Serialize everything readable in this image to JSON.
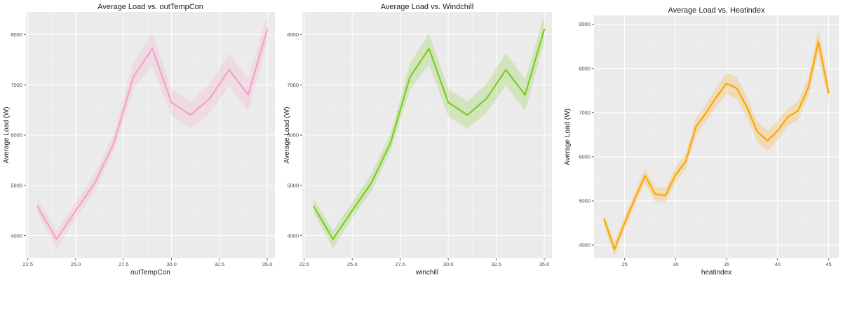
{
  "chart_data": [
    {
      "type": "line",
      "title": "Average Load vs. outTempCon",
      "xlabel": "outTempCon",
      "ylabel": "Average Load (W)",
      "xlim": [
        22.4,
        35.4
      ],
      "ylim": [
        3550,
        8450
      ],
      "xticks": [
        22.5,
        25.0,
        27.5,
        30.0,
        32.5,
        35.0
      ],
      "xtick_labels": [
        "22.5",
        "25.0",
        "27.5",
        "30.0",
        "32.5",
        "35.0"
      ],
      "yticks": [
        4000,
        5000,
        6000,
        7000,
        8000
      ],
      "ytick_labels": [
        "4000",
        "5000",
        "6000",
        "7000",
        "8000"
      ],
      "grid": true,
      "series": [
        {
          "color": "#f7a1c4",
          "x": [
            23,
            24,
            25,
            26,
            27,
            28,
            29,
            30,
            31,
            32,
            33,
            34,
            35
          ],
          "y": [
            4580,
            3930,
            4500,
            5050,
            5850,
            7150,
            7720,
            6650,
            6400,
            6730,
            7300,
            6800,
            8100
          ],
          "lower": [
            4450,
            3750,
            4350,
            4880,
            5700,
            6900,
            7400,
            6380,
            6130,
            6450,
            6980,
            6480,
            7850
          ],
          "upper": [
            4730,
            4100,
            4660,
            5230,
            6030,
            7420,
            8030,
            6920,
            6670,
            7020,
            7630,
            7110,
            8380
          ]
        }
      ]
    },
    {
      "type": "line",
      "title": "Average Load vs. Windchill",
      "xlabel": "winchill",
      "ylabel": "Average Load (W)",
      "xlim": [
        22.4,
        35.4
      ],
      "ylim": [
        3550,
        8450
      ],
      "xticks": [
        22.5,
        25.0,
        27.5,
        30.0,
        32.5,
        35.0
      ],
      "xtick_labels": [
        "22.5",
        "25.0",
        "27.5",
        "30.0",
        "32.5",
        "35.0"
      ],
      "yticks": [
        4000,
        5000,
        6000,
        7000,
        8000
      ],
      "ytick_labels": [
        "4000",
        "5000",
        "6000",
        "7000",
        "8000"
      ],
      "grid": true,
      "series": [
        {
          "color": "#7ccd1f",
          "x": [
            23,
            24,
            25,
            26,
            27,
            28,
            29,
            30,
            31,
            32,
            33,
            34,
            35
          ],
          "y": [
            4580,
            3930,
            4500,
            5050,
            5850,
            7150,
            7720,
            6650,
            6400,
            6730,
            7300,
            6800,
            8100
          ],
          "lower": [
            4450,
            3750,
            4350,
            4880,
            5700,
            6900,
            7400,
            6380,
            6130,
            6450,
            6980,
            6480,
            7850
          ],
          "upper": [
            4730,
            4100,
            4660,
            5230,
            6030,
            7420,
            8030,
            6920,
            6670,
            7020,
            7630,
            7110,
            8380
          ]
        }
      ]
    },
    {
      "type": "line",
      "title": "Average Load vs. Heatindex",
      "xlabel": "heatindex",
      "ylabel": "Average Load (W)",
      "xlim": [
        22.0,
        46.0
      ],
      "ylim": [
        3700,
        9200
      ],
      "xticks": [
        25,
        30,
        35,
        40,
        45
      ],
      "xtick_labels": [
        "25",
        "30",
        "35",
        "40",
        "45"
      ],
      "yticks": [
        4000,
        5000,
        6000,
        7000,
        8000,
        9000
      ],
      "ytick_labels": [
        "4000",
        "5000",
        "6000",
        "7000",
        "8000",
        "9000"
      ],
      "grid": true,
      "series": [
        {
          "color": "#ffa500",
          "x": [
            23,
            24,
            25,
            26,
            27,
            28,
            29,
            30,
            31,
            32,
            33,
            34,
            35,
            36,
            37,
            38,
            39,
            40,
            41,
            42,
            43,
            44,
            45
          ],
          "y": [
            4580,
            3900,
            4500,
            5050,
            5570,
            5150,
            5120,
            5590,
            5900,
            6680,
            7000,
            7350,
            7660,
            7550,
            7120,
            6570,
            6360,
            6590,
            6900,
            7040,
            7560,
            8610,
            7450
          ],
          "lower": [
            4450,
            3750,
            4350,
            4900,
            5400,
            4980,
            4950,
            5420,
            5730,
            6480,
            6800,
            7130,
            7420,
            7300,
            6880,
            6340,
            6130,
            6370,
            6700,
            6830,
            7340,
            8330,
            7200
          ],
          "upper": [
            4720,
            4060,
            4650,
            5200,
            5740,
            5320,
            5290,
            5760,
            6080,
            6880,
            7200,
            7570,
            7900,
            7800,
            7360,
            6800,
            6590,
            6810,
            7100,
            7250,
            7780,
            8900,
            7700
          ]
        }
      ]
    }
  ]
}
